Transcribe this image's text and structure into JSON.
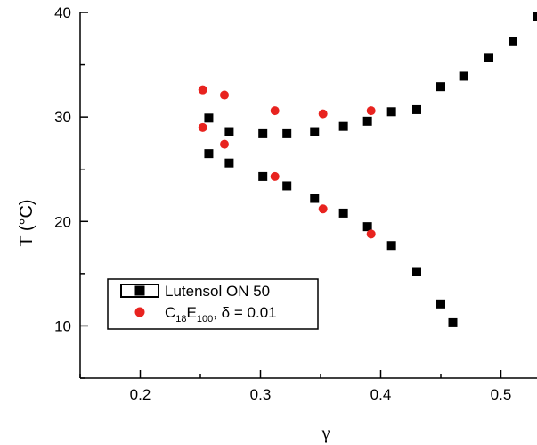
{
  "chart_data": {
    "type": "scatter",
    "xlabel": "γ",
    "ylabel": "T (°C)",
    "xlim": [
      0.15,
      0.53
    ],
    "ylim": [
      5,
      40
    ],
    "x_ticks": [
      "0.2",
      "0.3",
      "0.4",
      "0.5"
    ],
    "y_ticks": [
      "10",
      "20",
      "30",
      "40"
    ],
    "grid": false,
    "legend_placement": "bottom-left",
    "series": [
      {
        "name": "Lutensol ON 50",
        "marker": "square",
        "color": "#000000",
        "points": [
          [
            0.257,
            29.9
          ],
          [
            0.257,
            26.5
          ],
          [
            0.274,
            28.6
          ],
          [
            0.274,
            25.6
          ],
          [
            0.302,
            28.4
          ],
          [
            0.302,
            24.3
          ],
          [
            0.322,
            28.4
          ],
          [
            0.322,
            23.4
          ],
          [
            0.345,
            28.6
          ],
          [
            0.345,
            22.2
          ],
          [
            0.369,
            29.1
          ],
          [
            0.369,
            20.8
          ],
          [
            0.389,
            29.6
          ],
          [
            0.389,
            19.5
          ],
          [
            0.409,
            30.5
          ],
          [
            0.409,
            17.7
          ],
          [
            0.43,
            30.7
          ],
          [
            0.43,
            15.2
          ],
          [
            0.45,
            32.9
          ],
          [
            0.45,
            12.1
          ],
          [
            0.46,
            10.3
          ],
          [
            0.469,
            33.9
          ],
          [
            0.49,
            35.7
          ],
          [
            0.51,
            37.2
          ],
          [
            0.53,
            39.6
          ]
        ]
      },
      {
        "name_parts": {
          "c": "C",
          "c_sub": "18",
          "e": "E",
          "e_sub": "100",
          "rest": ", δ = 0.01"
        },
        "marker": "circle",
        "color": "#e8231f",
        "points": [
          [
            0.252,
            32.6
          ],
          [
            0.252,
            29.0
          ],
          [
            0.27,
            32.1
          ],
          [
            0.27,
            27.4
          ],
          [
            0.312,
            30.6
          ],
          [
            0.312,
            24.3
          ],
          [
            0.352,
            30.3
          ],
          [
            0.352,
            21.2
          ],
          [
            0.392,
            30.6
          ],
          [
            0.392,
            18.8
          ]
        ]
      }
    ]
  }
}
